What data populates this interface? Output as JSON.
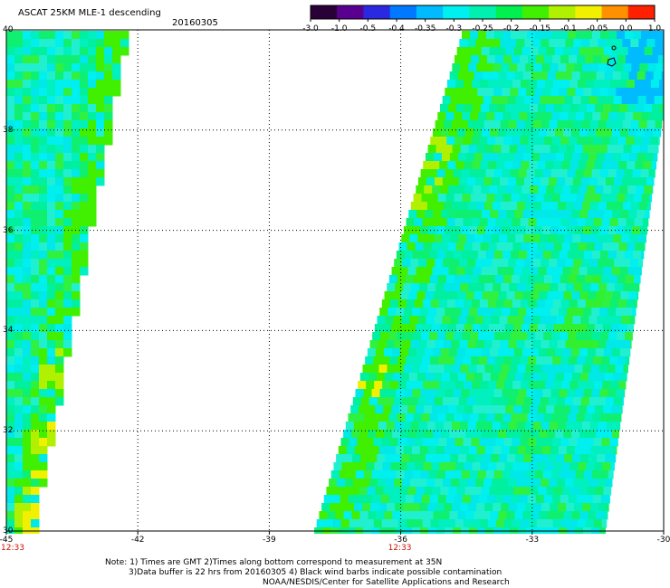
{
  "header": {
    "title": "ASCAT 25KM MLE-1 descending",
    "date": "20160305"
  },
  "colorbar": {
    "ticks": [
      "-3.0",
      "-1.0",
      "-0.5",
      "-0.4",
      "-0.35",
      "-0.3",
      "-0.25",
      "-0.2",
      "-0.15",
      "-0.1",
      "-0.05",
      "0.0",
      "1.0"
    ],
    "colors": [
      "#2a0038",
      "#5a0090",
      "#2a28e0",
      "#0078ff",
      "#00bcff",
      "#00f0f0",
      "#00f0b0",
      "#00f050",
      "#40f000",
      "#b0f000",
      "#f0f000",
      "#ff9000",
      "#ff2000"
    ]
  },
  "map": {
    "lat_labels": [
      "40",
      "38",
      "36",
      "34",
      "32",
      "30"
    ],
    "lon_labels": [
      "-45",
      "-42",
      "-39",
      "-36",
      "-33",
      "-30"
    ],
    "lat_range": [
      30,
      40
    ],
    "lon_range": [
      -45,
      -30
    ],
    "grid": "dotted",
    "swath_times": [
      "12:33",
      "12:33"
    ],
    "swath_time_lons": [
      -45,
      -36
    ]
  },
  "notes": [
    "Note: 1) Times are GMT 2)Times along bottom correspond to measurement at 35N",
    "3)Data buffer is 22 hrs from 20160305 4) Black wind barbs indicate possible contamination",
    "NOAA/NESDIS/Center for Satellite Applications and Research"
  ]
}
